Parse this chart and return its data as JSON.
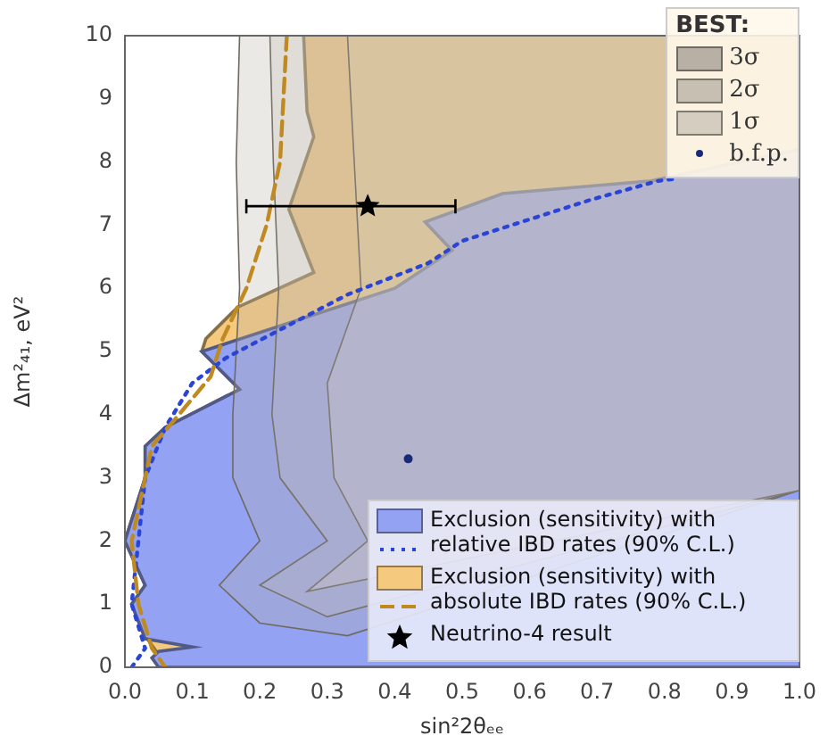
{
  "chart_data": {
    "type": "area",
    "xlabel": "sin²2θₑₑ",
    "ylabel": "Δm²₄₁, eV²",
    "legend_title": "BEST:",
    "legend": "right",
    "xlim": [
      0,
      1
    ],
    "ylim": [
      0,
      10
    ],
    "xticks": [
      {
        "value": 0,
        "label": "0.0"
      },
      0.1,
      0.2,
      0.3,
      0.4,
      0.5,
      0.6,
      0.7,
      0.8,
      0.9,
      {
        "value": 1,
        "label": "1.0"
      }
    ],
    "yticks": [
      0,
      1,
      2,
      3,
      4,
      5,
      6,
      7,
      8,
      9,
      10
    ],
    "series": [
      {
        "name": "3σ",
        "color": "#b8b0a4",
        "x": [
          0.17,
          0.165,
          0.17,
          0.16,
          0.16,
          0.2,
          0.14,
          0.2,
          0.33,
          1,
          1
        ],
        "values": [
          10,
          8,
          6,
          4,
          3,
          2,
          1.3,
          0.7,
          0.5,
          2.8,
          10
        ]
      },
      {
        "name": "2σ",
        "color": "#c6bfb2",
        "x": [
          0.215,
          0.22,
          0.228,
          0.218,
          0.23,
          0.3,
          0.2,
          0.3,
          1,
          1
        ],
        "values": [
          10,
          8,
          6,
          4,
          3,
          2,
          1.3,
          0.8,
          2.8,
          10
        ]
      },
      {
        "name": "1σ",
        "color": "#d4cdc0",
        "x": [
          0.33,
          0.34,
          0.35,
          0.3,
          0.31,
          0.36,
          0.27,
          1,
          1
        ],
        "values": [
          10,
          8,
          6,
          4.5,
          3,
          2,
          1.2,
          2.8,
          10
        ]
      },
      {
        "type": "scatter",
        "name": "b.f.p.",
        "color": "#1a2a7a",
        "marker": "circle",
        "x": [
          0.42
        ],
        "values": [
          3.3
        ]
      },
      {
        "name": "Exclusion (sensitivity) with relative IBD rates (90% C.L.)",
        "color": "#93a2f3",
        "x": [
          1,
          0.78,
          0.56,
          0.445,
          0.485,
          0.4,
          0.114,
          0.17,
          0.06,
          0.03,
          0.03,
          0,
          0.03,
          0.01,
          0.03,
          0.1,
          0.05,
          0.04,
          0.05,
          1
        ],
        "values": [
          8.2,
          7.7,
          7.5,
          7.05,
          6.6,
          6,
          5,
          4.4,
          3.8,
          3.5,
          3,
          2,
          1.3,
          1,
          0.45,
          0.32,
          0.25,
          0.15,
          0,
          0
        ]
      },
      {
        "type": "line",
        "line_style": "dotted",
        "color": "#2a44d6",
        "x": [
          0.01,
          0.03,
          0.01,
          0.02,
          0.03,
          0.06,
          0.1,
          0.15,
          0.33,
          0.45,
          0.5,
          0.69,
          0.79,
          0.82
        ],
        "values": [
          0,
          0.3,
          1,
          2,
          3,
          3.8,
          4.5,
          4.9,
          5.9,
          6.4,
          6.75,
          7.4,
          7.7,
          7.74
        ]
      },
      {
        "name": "Exclusion (sensitivity) with absolute IBD rates (90% C.L.)",
        "color": "#f5ca7e",
        "x": [
          0.265,
          0.27,
          0.28,
          0.243,
          0.28,
          0.167,
          0.12,
          0.114,
          0.17,
          0.06,
          0.03,
          0.03,
          0,
          0.03,
          0.01,
          0.03,
          0.05,
          0.06,
          1,
          1
        ],
        "values": [
          10,
          8.8,
          8.4,
          7.25,
          6.25,
          5.7,
          5.2,
          5,
          4.4,
          3.8,
          3.5,
          3,
          2,
          1.3,
          1,
          0.5,
          0.2,
          0,
          0,
          10
        ]
      },
      {
        "type": "line",
        "line_style": "dashed",
        "color": "#c08a22",
        "x": [
          0.24,
          0.23,
          0.21,
          0.18,
          0.145,
          0.127,
          0.08,
          0.04,
          0.03,
          0.01,
          0.02,
          0.04,
          0.06
        ],
        "values": [
          10,
          8,
          7,
          6,
          5.2,
          4.6,
          4,
          3.5,
          3,
          2,
          1,
          0.3,
          0
        ]
      },
      {
        "type": "scatter",
        "name": "Neutrino-4 result",
        "color": "#000000",
        "marker": "star",
        "x": [
          0.36
        ],
        "values": [
          7.3
        ],
        "xerrors": [
          [
            0.18,
            0.49
          ]
        ]
      }
    ]
  }
}
